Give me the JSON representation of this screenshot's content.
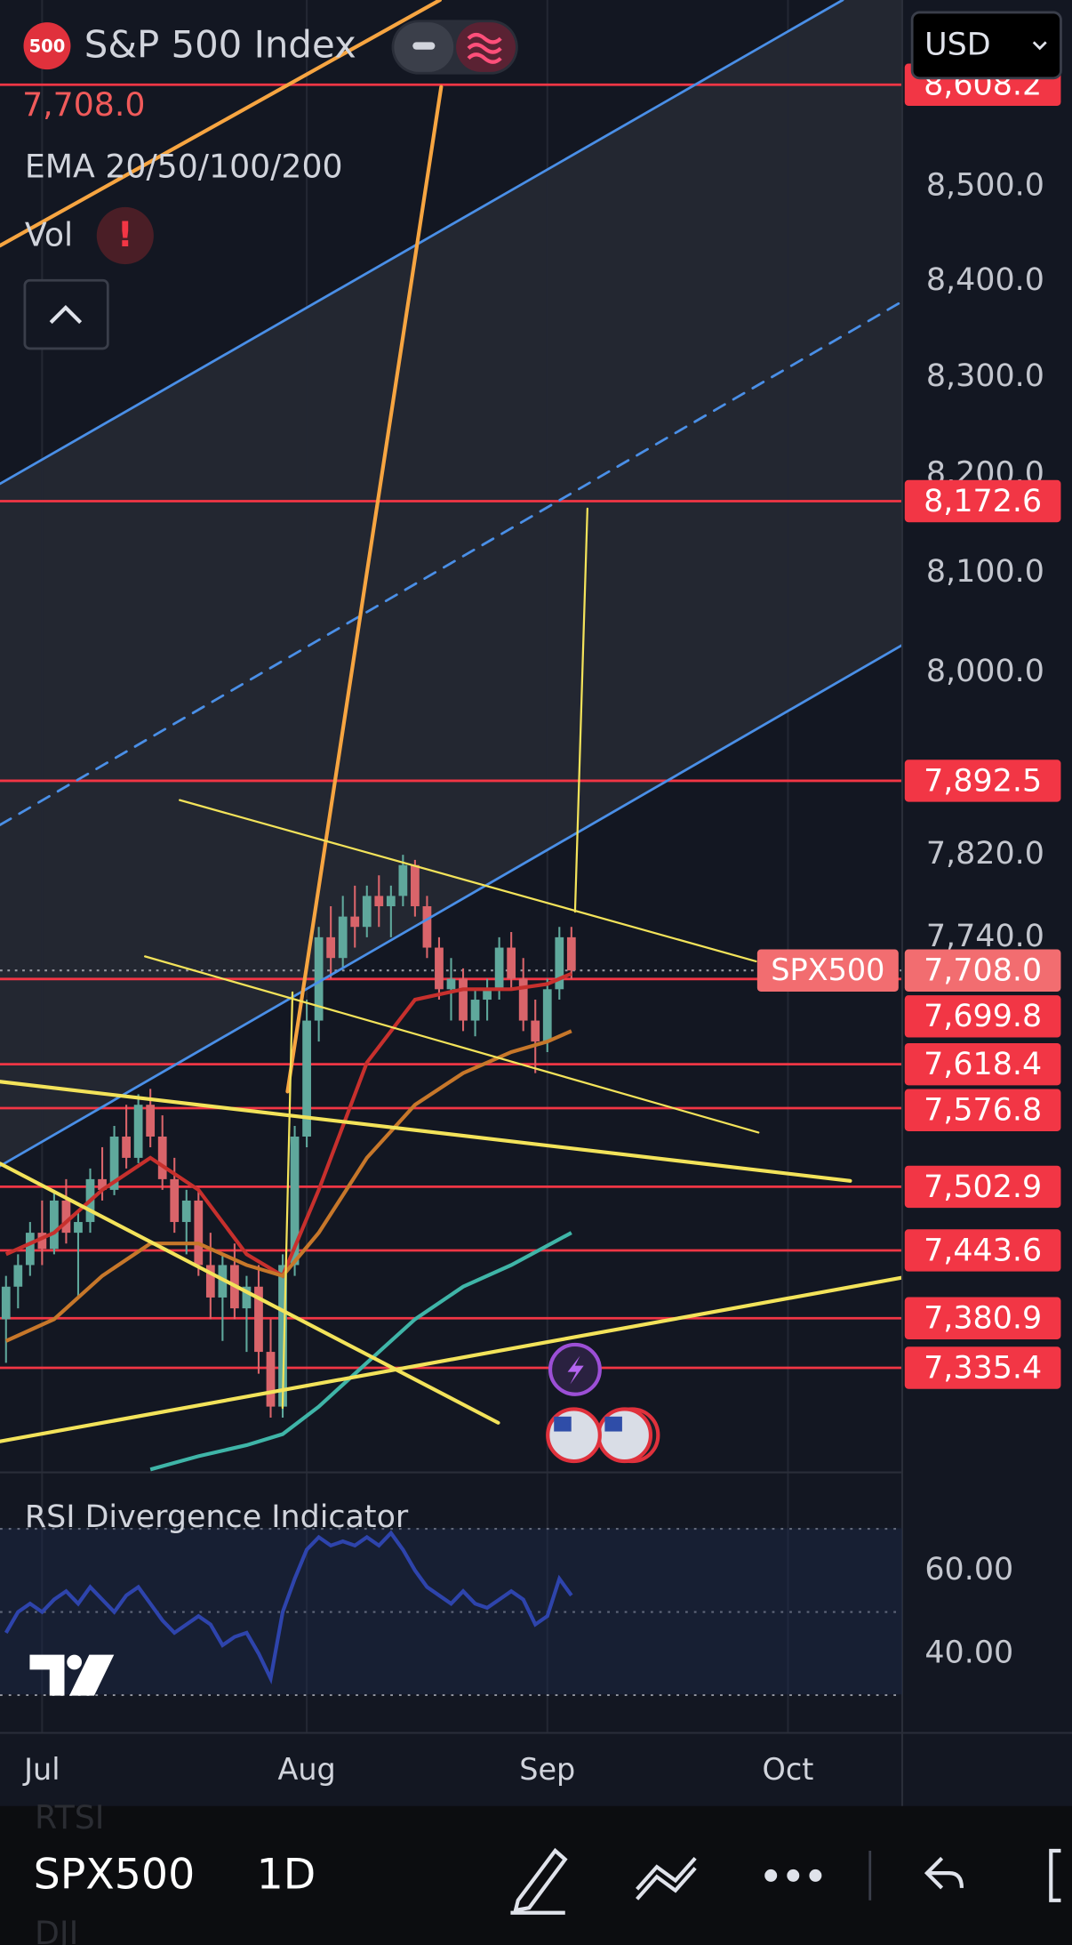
{
  "header": {
    "badge": "500",
    "title": "S&P 500 Index",
    "last_price": "7,708.0",
    "indicators": "EMA 20/50/100/200",
    "volume": "Vol",
    "currency": "USD"
  },
  "chart_data": [
    {
      "type": "candlestick",
      "symbol": "SPX500",
      "log_scale": true,
      "open": [
        7380,
        7410,
        7430,
        7460,
        7445,
        7490,
        7460,
        7470,
        7510,
        7500,
        7550,
        7530,
        7580,
        7550,
        7510,
        7470,
        7490,
        7430,
        7400,
        7430,
        7390,
        7410,
        7350,
        7300,
        7430,
        7550,
        7660,
        7740,
        7720,
        7760,
        7750,
        7780,
        7770,
        7780,
        7810,
        7770,
        7730,
        7690,
        7700,
        7660,
        7680,
        7690,
        7730,
        7700,
        7660,
        7640,
        7690,
        7740
      ],
      "high": [
        7420,
        7440,
        7470,
        7490,
        7500,
        7510,
        7480,
        7520,
        7540,
        7560,
        7580,
        7590,
        7595,
        7570,
        7530,
        7500,
        7500,
        7460,
        7440,
        7450,
        7420,
        7430,
        7380,
        7440,
        7560,
        7680,
        7750,
        7770,
        7780,
        7790,
        7790,
        7800,
        7790,
        7820,
        7815,
        7780,
        7740,
        7720,
        7710,
        7690,
        7700,
        7740,
        7745,
        7720,
        7680,
        7700,
        7750,
        7750
      ],
      "low": [
        7340,
        7390,
        7420,
        7430,
        7440,
        7450,
        7400,
        7460,
        7490,
        7495,
        7520,
        7525,
        7540,
        7500,
        7460,
        7440,
        7420,
        7380,
        7360,
        7380,
        7350,
        7330,
        7290,
        7290,
        7420,
        7540,
        7640,
        7700,
        7710,
        7730,
        7740,
        7750,
        7740,
        7770,
        7760,
        7720,
        7680,
        7660,
        7650,
        7645,
        7660,
        7680,
        7690,
        7650,
        7610,
        7630,
        7680,
        7700
      ],
      "close": [
        7410,
        7430,
        7460,
        7445,
        7490,
        7460,
        7470,
        7510,
        7500,
        7550,
        7530,
        7580,
        7550,
        7510,
        7470,
        7490,
        7430,
        7400,
        7430,
        7390,
        7410,
        7350,
        7300,
        7430,
        7550,
        7660,
        7740,
        7720,
        7760,
        7750,
        7780,
        7770,
        7780,
        7810,
        7770,
        7730,
        7690,
        7700,
        7660,
        7680,
        7690,
        7730,
        7700,
        7660,
        7640,
        7690,
        7740,
        7708
      ],
      "up_color": "#5fa89c",
      "down_color": "#d9646a",
      "xlim": [
        -0.5,
        74.5
      ],
      "ylim": [
        7242.6,
        8699.6
      ],
      "xticks": [
        {
          "value": 3,
          "label": "Jul"
        },
        {
          "value": 25,
          "label": "Aug"
        },
        {
          "value": 45,
          "label": "Sep"
        },
        {
          "value": 65,
          "label": "Oct"
        }
      ],
      "yticks": [
        {
          "value": 8500,
          "label": "8,500.0"
        },
        {
          "value": 8400,
          "label": "8,400.0"
        },
        {
          "value": 8300,
          "label": "8,300.0"
        },
        {
          "value": 8200,
          "label": "8,200.0"
        },
        {
          "value": 8100,
          "label": "8,100.0"
        },
        {
          "value": 8000,
          "label": "8,000.0"
        },
        {
          "value": 7820,
          "label": "7,820.0"
        },
        {
          "value": 7740,
          "label": "7,740.0"
        }
      ],
      "emas": [
        {
          "color": "#c7302d",
          "x": [
            0,
            4,
            8,
            12,
            16,
            20,
            23,
            26,
            30,
            34,
            38,
            42,
            45,
            47
          ],
          "values": [
            7440,
            7460,
            7500,
            7530,
            7500,
            7440,
            7420,
            7500,
            7620,
            7680,
            7690,
            7690,
            7695,
            7705
          ]
        },
        {
          "color": "#c7772a",
          "x": [
            0,
            4,
            8,
            12,
            16,
            20,
            23,
            26,
            30,
            34,
            38,
            42,
            45,
            47
          ],
          "values": [
            7360,
            7380,
            7420,
            7450,
            7450,
            7430,
            7420,
            7460,
            7530,
            7580,
            7610,
            7630,
            7640,
            7650
          ]
        },
        {
          "color": "#3fb5a8",
          "x": [
            12,
            16,
            20,
            23,
            26,
            30,
            34,
            38,
            42,
            47
          ],
          "values": [
            7243,
            7255,
            7265,
            7275,
            7300,
            7340,
            7380,
            7410,
            7430,
            7460
          ]
        }
      ],
      "levels": [
        {
          "value": 8608.2,
          "label": "8,608.2"
        },
        {
          "value": 8172.6,
          "label": "8,172.6"
        },
        {
          "value": 7892.5,
          "label": "7,892.5"
        },
        {
          "value": 7699.8,
          "label": "7,699.8"
        },
        {
          "value": 7618.4,
          "label": "7,618.4"
        },
        {
          "value": 7576.8,
          "label": "7,576.8"
        },
        {
          "value": 7502.9,
          "label": "7,502.9"
        },
        {
          "value": 7443.6,
          "label": "7,443.6"
        },
        {
          "value": 7380.9,
          "label": "7,380.9"
        },
        {
          "value": 7335.4,
          "label": "7,335.4"
        }
      ],
      "level_color": "#f23645",
      "last_price": {
        "value": 7708,
        "label": "7,708.0"
      },
      "last_price_color": "#f26d70"
    },
    {
      "type": "line",
      "title": "RSI Divergence Indicator",
      "color": "#3d5afe",
      "values": [
        45,
        50,
        52,
        50,
        53,
        55,
        52,
        56,
        53,
        50,
        54,
        56,
        52,
        48,
        45,
        47,
        49,
        47,
        42,
        44,
        45,
        40,
        34,
        50,
        58,
        65,
        68,
        66,
        67,
        66,
        68,
        66,
        69,
        65,
        60,
        56,
        54,
        52,
        55,
        52,
        51,
        53,
        55,
        53,
        47,
        49,
        58,
        54
      ],
      "xlim": [
        -0.5,
        74.5
      ],
      "ylim": [
        21.5,
        82.7
      ],
      "yticks": [
        {
          "value": 60,
          "label": "60.00"
        },
        {
          "value": 40,
          "label": "40.00"
        }
      ],
      "levels": [
        70,
        50,
        30
      ]
    }
  ],
  "toolbar": {
    "symbol": "SPX500",
    "interval": "1D",
    "watchlist": [
      "RTSI",
      "DJI"
    ]
  }
}
